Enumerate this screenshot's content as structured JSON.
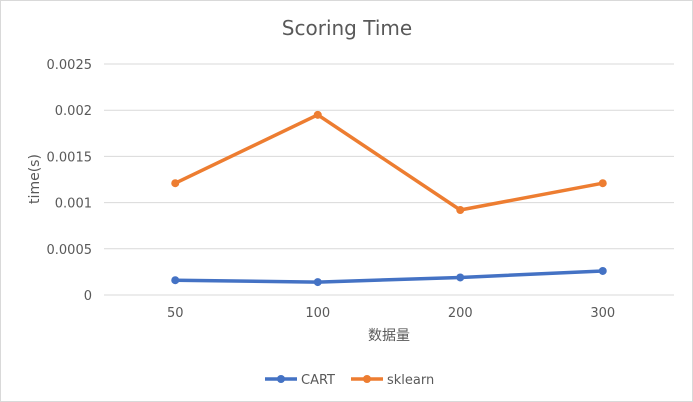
{
  "chart_data": {
    "type": "line",
    "title": "Scoring Time",
    "xlabel": "数据量",
    "ylabel": "time(s)",
    "categories": [
      "50",
      "100",
      "200",
      "300"
    ],
    "yticks": [
      "0",
      "0.0005",
      "0.001",
      "0.0015",
      "0.002",
      "0.0025"
    ],
    "ylim": [
      0,
      0.0025
    ],
    "grid": true,
    "legend_position": "bottom",
    "series": [
      {
        "name": "CART",
        "color": "#4472c4",
        "values": [
          0.00016,
          0.00014,
          0.00019,
          0.00026
        ]
      },
      {
        "name": "sklearn",
        "color": "#ed7d31",
        "values": [
          0.00121,
          0.00195,
          0.00092,
          0.00121
        ]
      }
    ]
  }
}
